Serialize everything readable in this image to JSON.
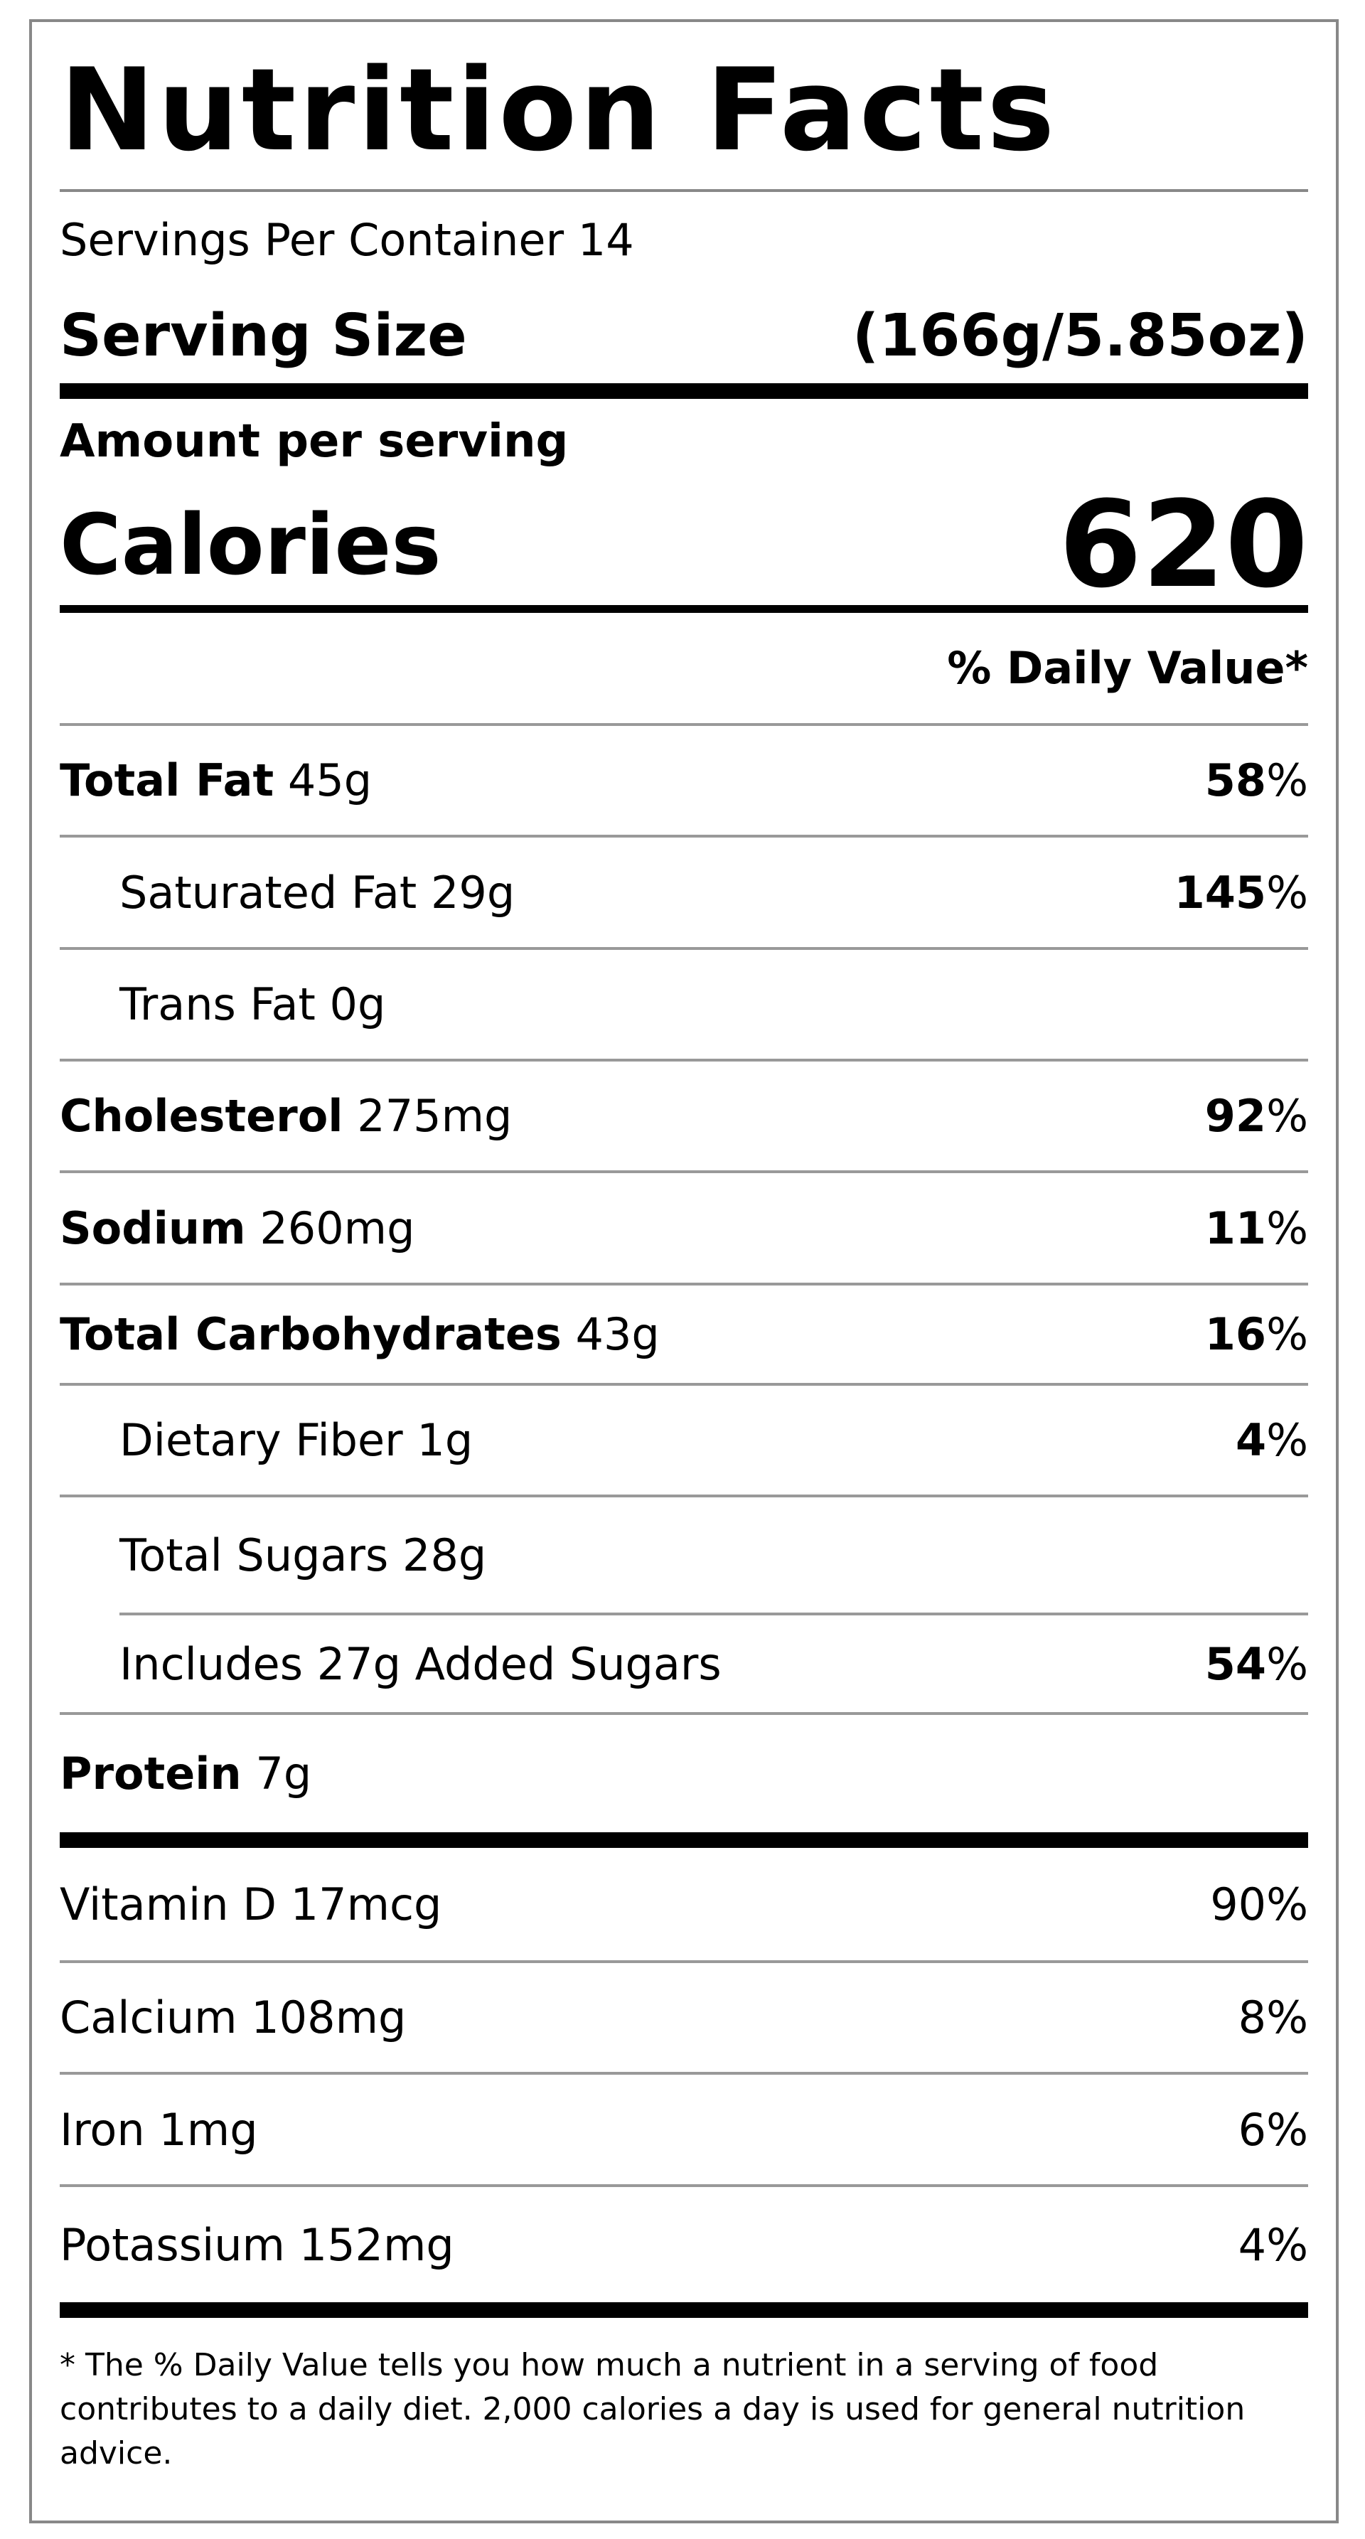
{
  "title": "Nutrition Facts",
  "servings_per_container": "Servings Per Container 14",
  "serving_size": {
    "label": "Serving Size",
    "value": "(166g/5.85oz)"
  },
  "amount_per_serving": "Amount per serving",
  "calories": {
    "label": "Calories",
    "value": "620"
  },
  "daily_value_header": "% Daily Value*",
  "nutrients": [
    {
      "name": "Total Fat",
      "amount": "45g",
      "daily_value": "58%"
    },
    {
      "name": "Saturated Fat",
      "amount": "29g",
      "daily_value": "145%"
    },
    {
      "name": "Trans Fat",
      "amount": "0g"
    },
    {
      "name": "Cholesterol",
      "amount": "275mg",
      "daily_value": "92%"
    },
    {
      "name": "Sodium",
      "amount": "260mg",
      "daily_value": "11%"
    },
    {
      "name": "Total Carbohydrates",
      "amount": "43g",
      "daily_value": "16%"
    },
    {
      "name": "Dietary Fiber",
      "amount": "1g",
      "daily_value": "4%"
    },
    {
      "name": "Total Sugars",
      "amount": "28g"
    },
    {
      "name": "Includes 27g Added Sugars",
      "daily_value": "54%"
    },
    {
      "name": "Protein",
      "amount": "7g"
    }
  ],
  "vitamins": [
    {
      "name": "Vitamin D",
      "amount": "17mcg",
      "daily_value": "90%"
    },
    {
      "name": "Calcium",
      "amount": "108mg",
      "daily_value": "8%"
    },
    {
      "name": "Iron",
      "amount": "1mg",
      "daily_value": "6%"
    },
    {
      "name": "Potassium",
      "amount": "152mg",
      "daily_value": "4%"
    }
  ],
  "footnote": "* The % Daily Value tells you how much a nutrient in a serving of food contributes to a daily diet. 2,000 calories a day is used for general nutrition advice."
}
